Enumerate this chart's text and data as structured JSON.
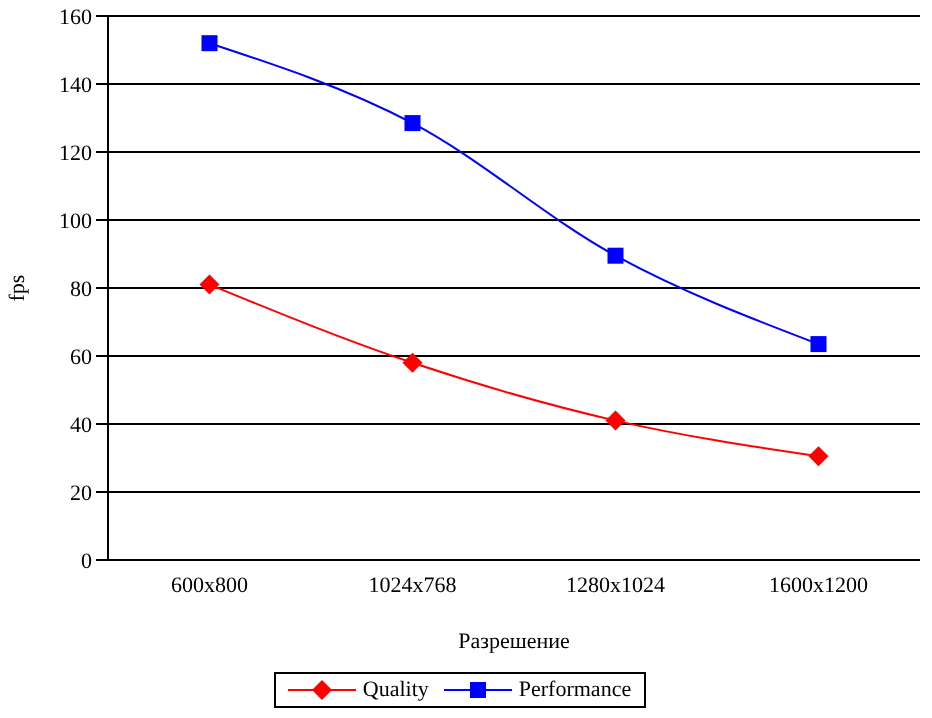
{
  "chart_data": {
    "type": "line",
    "xlabel": "Разрешение",
    "ylabel": "fps",
    "categories": [
      "600x800",
      "1024x768",
      "1280x1024",
      "1600x1200"
    ],
    "series": [
      {
        "name": "Quality",
        "color": "#ff0000",
        "marker": "diamond",
        "values": [
          81,
          58,
          41,
          30.5
        ]
      },
      {
        "name": "Performance",
        "color": "#0000ff",
        "marker": "square",
        "values": [
          152,
          128.5,
          89.5,
          63.5
        ]
      }
    ],
    "ylim": [
      0,
      160
    ],
    "yticks": [
      0,
      20,
      40,
      60,
      80,
      100,
      120,
      140,
      160
    ],
    "grid": "y",
    "legend": "bottom",
    "line_style": "solid"
  }
}
